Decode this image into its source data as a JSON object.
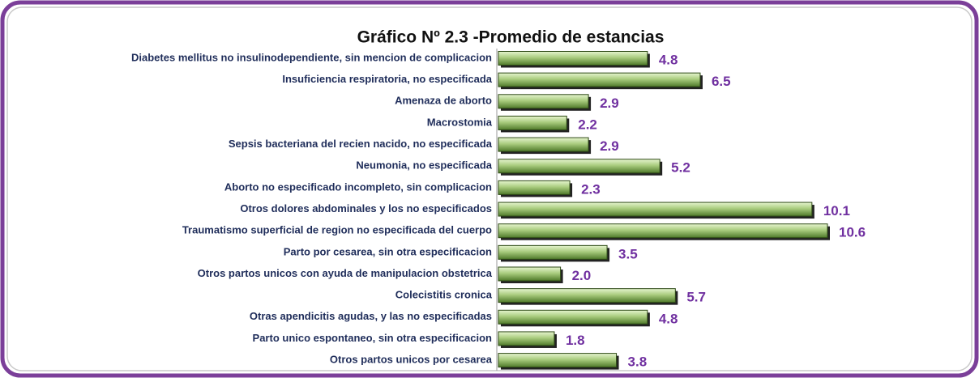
{
  "chart_data": {
    "type": "bar",
    "orientation": "horizontal",
    "title": "Gráfico Nº 2.3  -Promedio de estancias",
    "categories": [
      "Diabetes mellitus no insulinodependiente, sin mencion de complicacion",
      "Insuficiencia respiratoria, no especificada",
      "Amenaza de aborto",
      "Macrostomia",
      "Sepsis bacteriana del recien nacido, no especificada",
      "Neumonia, no especificada",
      "Aborto no especificado incompleto, sin complicacion",
      "Otros dolores abdominales y los no especificados",
      "Traumatismo superficial de region no especificada del cuerpo",
      "Parto por cesarea, sin otra especificacion",
      "Otros partos unicos con ayuda de manipulacion obstetrica",
      "Colecistitis cronica",
      "Otras apendicitis agudas, y las no especificadas",
      "Parto unico espontaneo, sin otra especificacion",
      "Otros partos unicos por cesarea"
    ],
    "values": [
      4.8,
      6.5,
      2.9,
      2.2,
      2.9,
      5.2,
      2.3,
      10.1,
      10.6,
      3.5,
      2.0,
      5.7,
      4.8,
      1.8,
      3.8
    ],
    "value_labels": [
      "4.8",
      "6.5",
      "2.9",
      "2.2",
      "2.9",
      "5.2",
      "2.3",
      "10.1",
      "10.6",
      "3.5",
      "2.0",
      "5.7",
      "4.8",
      "1.8",
      "3.8"
    ],
    "color": "#8fb36a"
  }
}
